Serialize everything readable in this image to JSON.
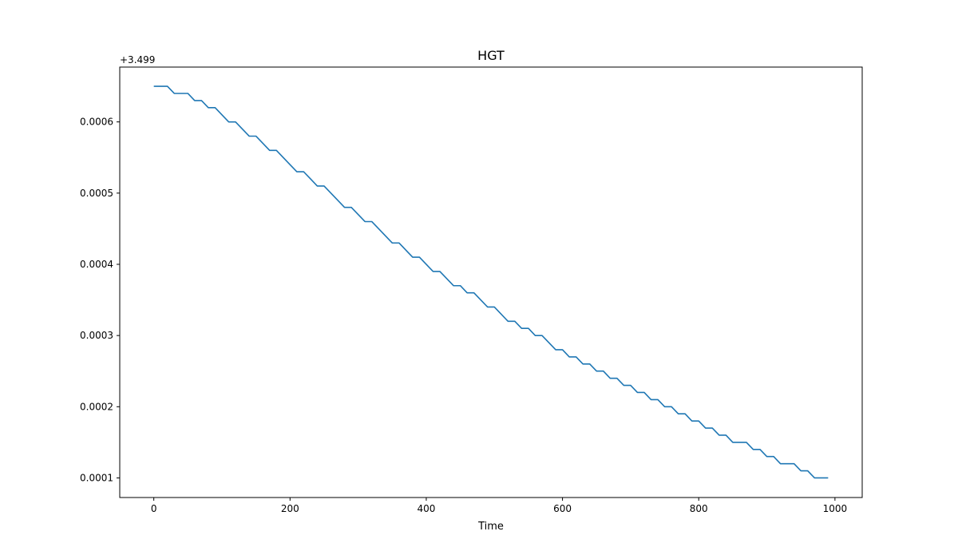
{
  "chart_data": {
    "type": "line",
    "title": "HGT",
    "xlabel": "Time",
    "ylabel": "",
    "y_offset_label": "+3.499",
    "xlim": [
      -50,
      1040
    ],
    "ylim": [
      7.25e-05,
      0.000677
    ],
    "xticks": [
      0,
      200,
      400,
      600,
      800,
      1000
    ],
    "yticks": [
      0.0001,
      0.0002,
      0.0003,
      0.0004,
      0.0005,
      0.0006
    ],
    "ytick_labels": [
      "0.0001",
      "0.0002",
      "0.0003",
      "0.0004",
      "0.0005",
      "0.0006"
    ],
    "grid": false,
    "colors": {
      "line": "#1f77b4"
    },
    "series": [
      {
        "x": [
          0,
          20,
          30,
          50,
          60,
          70,
          80,
          90,
          110,
          120,
          140,
          150,
          170,
          180,
          200,
          210,
          220,
          230,
          240,
          250,
          280,
          290,
          310,
          320,
          350,
          360,
          380,
          390,
          410,
          420,
          440,
          450,
          460,
          470,
          490,
          500,
          520,
          530,
          540,
          550,
          560,
          570,
          590,
          600,
          610,
          620,
          630,
          640,
          650,
          660,
          670,
          680,
          690,
          700,
          710,
          720,
          730,
          740,
          750,
          760,
          770,
          780,
          790,
          800,
          810,
          820,
          830,
          840,
          850,
          870,
          880,
          890,
          900,
          910,
          920,
          940,
          950,
          960,
          970,
          990
        ],
        "y": [
          0.00065,
          0.00065,
          0.00064,
          0.00064,
          0.00063,
          0.00063,
          0.00062,
          0.00062,
          0.0006,
          0.0006,
          0.00058,
          0.00058,
          0.00056,
          0.00056,
          0.00054,
          0.00053,
          0.00053,
          0.00052,
          0.00051,
          0.00051,
          0.00048,
          0.00048,
          0.00046,
          0.00046,
          0.00043,
          0.00043,
          0.00041,
          0.00041,
          0.00039,
          0.00039,
          0.00037,
          0.00037,
          0.00036,
          0.00036,
          0.00034,
          0.00034,
          0.00032,
          0.00032,
          0.00031,
          0.00031,
          0.0003,
          0.0003,
          0.00028,
          0.00028,
          0.00027,
          0.00027,
          0.00026,
          0.00026,
          0.00025,
          0.00025,
          0.00024,
          0.00024,
          0.00023,
          0.00023,
          0.00022,
          0.00022,
          0.00021,
          0.00021,
          0.0002,
          0.0002,
          0.00019,
          0.00019,
          0.00018,
          0.00018,
          0.00017,
          0.00017,
          0.00016,
          0.00016,
          0.00015,
          0.00015,
          0.00014,
          0.00014,
          0.00013,
          0.00013,
          0.00012,
          0.00012,
          0.00011,
          0.00011,
          0.0001,
          0.0001
        ]
      }
    ]
  }
}
